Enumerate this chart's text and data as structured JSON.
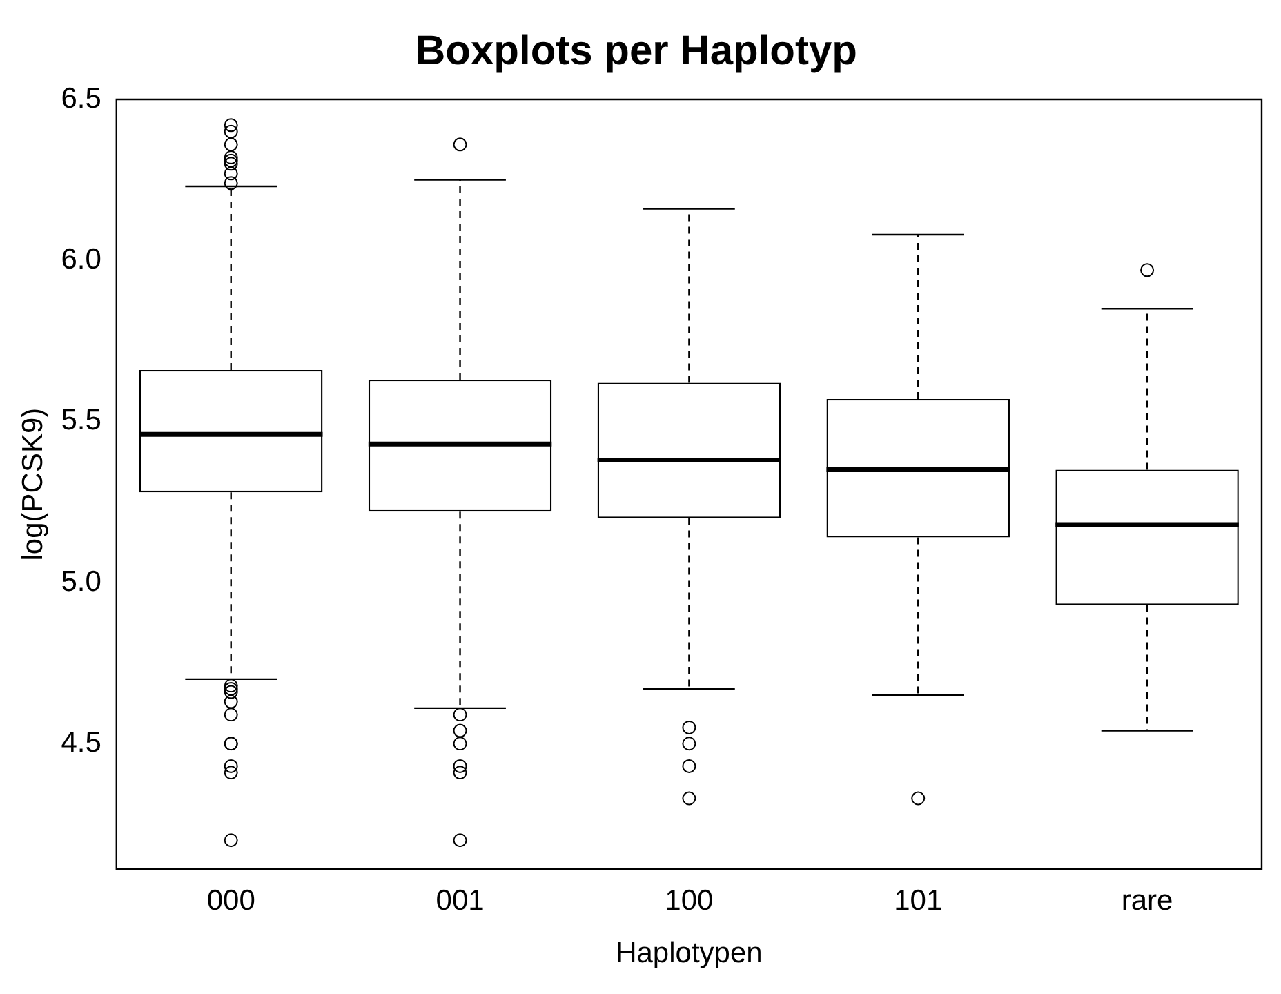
{
  "chart_data": {
    "type": "box",
    "title": "Boxplots per Haplotyp",
    "xlabel": "Haplotypen",
    "ylabel": "log(PCSK9)",
    "categories": [
      "000",
      "001",
      "100",
      "101",
      "rare"
    ],
    "boxes": [
      {
        "low": 4.7,
        "q1": 5.28,
        "median": 5.46,
        "q3": 5.66,
        "high": 6.23,
        "outliers": [
          6.42,
          6.4,
          6.36,
          6.32,
          6.31,
          6.3,
          6.27,
          6.24,
          4.68,
          4.67,
          4.66,
          4.63,
          4.59,
          4.5,
          4.5,
          4.43,
          4.41,
          4.2
        ]
      },
      {
        "low": 4.61,
        "q1": 5.22,
        "median": 5.43,
        "q3": 5.63,
        "high": 6.25,
        "outliers": [
          6.36,
          4.59,
          4.54,
          4.5,
          4.43,
          4.41,
          4.2
        ]
      },
      {
        "low": 4.67,
        "q1": 5.2,
        "median": 5.38,
        "q3": 5.62,
        "high": 6.16,
        "outliers": [
          4.55,
          4.5,
          4.43,
          4.33
        ]
      },
      {
        "low": 4.65,
        "q1": 5.14,
        "median": 5.35,
        "q3": 5.57,
        "high": 6.08,
        "outliers": [
          4.33
        ]
      },
      {
        "low": 4.54,
        "q1": 4.93,
        "median": 5.18,
        "q3": 5.35,
        "high": 5.85,
        "outliers": [
          5.97
        ]
      }
    ],
    "ylim": [
      4.11,
      6.5
    ],
    "yticks": [
      4.5,
      {
        "value": 5,
        "label": "5.0"
      },
      5.5,
      {
        "value": 6,
        "label": "6.0"
      },
      6.5
    ],
    "grid": false,
    "legend": false,
    "marker": "circle"
  }
}
